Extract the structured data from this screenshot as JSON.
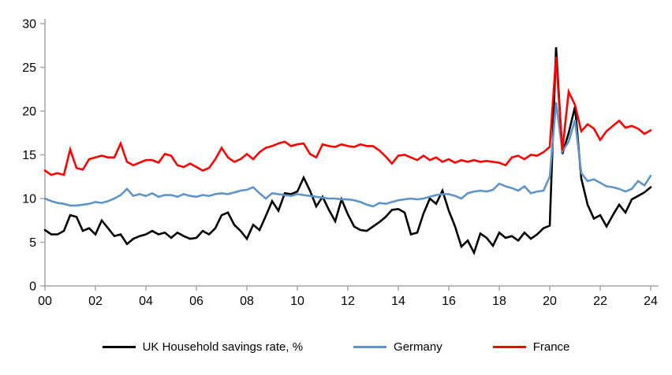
{
  "chart_data": {
    "type": "line",
    "title": "",
    "xlabel": "",
    "ylabel": "",
    "x_unit": "year (quarterly data)",
    "x_start_year": 2000,
    "x_step_years": 0.25,
    "xlim": [
      2000,
      2024.3
    ],
    "ylim": [
      0,
      30
    ],
    "y_ticks": [
      0,
      5,
      10,
      15,
      20,
      25,
      30
    ],
    "x_tick_labels": [
      "00",
      "02",
      "04",
      "06",
      "08",
      "10",
      "12",
      "14",
      "16",
      "18",
      "20",
      "22",
      "24"
    ],
    "grid": false,
    "legend_position": "bottom",
    "axis_color": "#a6a6a6",
    "text_color": "#000000",
    "series": [
      {
        "name": "UK Household savings rate, %",
        "color": "#000000",
        "values": [
          6.4,
          5.9,
          5.9,
          6.3,
          8.1,
          7.9,
          6.3,
          6.6,
          5.9,
          7.5,
          6.6,
          5.7,
          5.9,
          4.8,
          5.4,
          5.7,
          5.9,
          6.3,
          5.9,
          6.1,
          5.5,
          6.1,
          5.7,
          5.4,
          5.5,
          6.3,
          5.9,
          6.6,
          8.1,
          8.4,
          7.0,
          6.3,
          5.4,
          7.0,
          6.4,
          8.0,
          9.7,
          8.6,
          10.6,
          10.5,
          10.8,
          12.4,
          10.9,
          9.1,
          10.2,
          8.7,
          7.4,
          9.9,
          8.2,
          6.8,
          6.4,
          6.3,
          6.8,
          7.3,
          7.9,
          8.7,
          8.8,
          8.4,
          5.9,
          6.1,
          8.3,
          10.0,
          9.4,
          10.9,
          8.6,
          6.8,
          4.5,
          5.2,
          3.8,
          6.0,
          5.5,
          4.6,
          6.1,
          5.5,
          5.7,
          5.2,
          6.1,
          5.4,
          5.9,
          6.6,
          6.9,
          27.3,
          15.1,
          17.5,
          20.5,
          12.3,
          9.3,
          7.7,
          8.1,
          6.8,
          8.1,
          9.3,
          8.4,
          9.9,
          10.3,
          10.7,
          11.3
        ]
      },
      {
        "name": "Germany",
        "color": "#5e94c9",
        "values": [
          10.0,
          9.7,
          9.5,
          9.4,
          9.2,
          9.2,
          9.3,
          9.4,
          9.6,
          9.5,
          9.7,
          10.0,
          10.4,
          11.1,
          10.3,
          10.5,
          10.3,
          10.6,
          10.2,
          10.4,
          10.4,
          10.2,
          10.5,
          10.3,
          10.2,
          10.4,
          10.3,
          10.5,
          10.6,
          10.5,
          10.7,
          10.9,
          11.0,
          11.3,
          10.6,
          10.0,
          10.6,
          10.5,
          10.4,
          10.3,
          10.5,
          10.4,
          10.3,
          10.2,
          10.1,
          10.0,
          10.0,
          9.9,
          9.9,
          9.8,
          9.6,
          9.3,
          9.1,
          9.5,
          9.4,
          9.6,
          9.8,
          9.9,
          10.0,
          9.9,
          10.0,
          10.2,
          10.4,
          10.5,
          10.5,
          10.3,
          10.0,
          10.6,
          10.8,
          10.9,
          10.8,
          11.0,
          11.7,
          11.4,
          11.2,
          10.9,
          11.4,
          10.6,
          10.8,
          10.9,
          12.5,
          21.0,
          15.4,
          16.5,
          19.0,
          12.9,
          12.0,
          12.2,
          11.8,
          11.4,
          11.3,
          11.1,
          10.8,
          11.1,
          12.0,
          11.5,
          12.6
        ]
      },
      {
        "name": "France",
        "color": "#ff0000",
        "values": [
          13.2,
          12.7,
          12.9,
          12.7,
          15.6,
          13.5,
          13.3,
          14.5,
          14.7,
          14.9,
          14.7,
          14.7,
          16.3,
          14.2,
          13.8,
          14.1,
          14.4,
          14.4,
          14.1,
          15.1,
          14.9,
          13.8,
          13.6,
          14.0,
          13.6,
          13.2,
          13.5,
          14.5,
          15.8,
          14.7,
          14.2,
          14.5,
          15.1,
          14.5,
          15.3,
          15.8,
          16.0,
          16.3,
          16.5,
          16.0,
          16.2,
          16.3,
          15.1,
          14.7,
          16.2,
          16.0,
          15.9,
          16.2,
          16.0,
          15.9,
          16.2,
          16.0,
          16.0,
          15.5,
          14.8,
          14.0,
          14.9,
          15.0,
          14.7,
          14.4,
          14.9,
          14.4,
          14.7,
          14.2,
          14.5,
          14.1,
          14.4,
          14.2,
          14.4,
          14.2,
          14.3,
          14.2,
          14.1,
          13.8,
          14.7,
          14.9,
          14.5,
          15.0,
          14.9,
          15.3,
          15.9,
          26.2,
          15.5,
          22.2,
          20.7,
          17.7,
          18.5,
          18.0,
          16.7,
          17.7,
          18.3,
          18.9,
          18.1,
          18.3,
          18.0,
          17.4,
          17.8
        ]
      }
    ]
  }
}
